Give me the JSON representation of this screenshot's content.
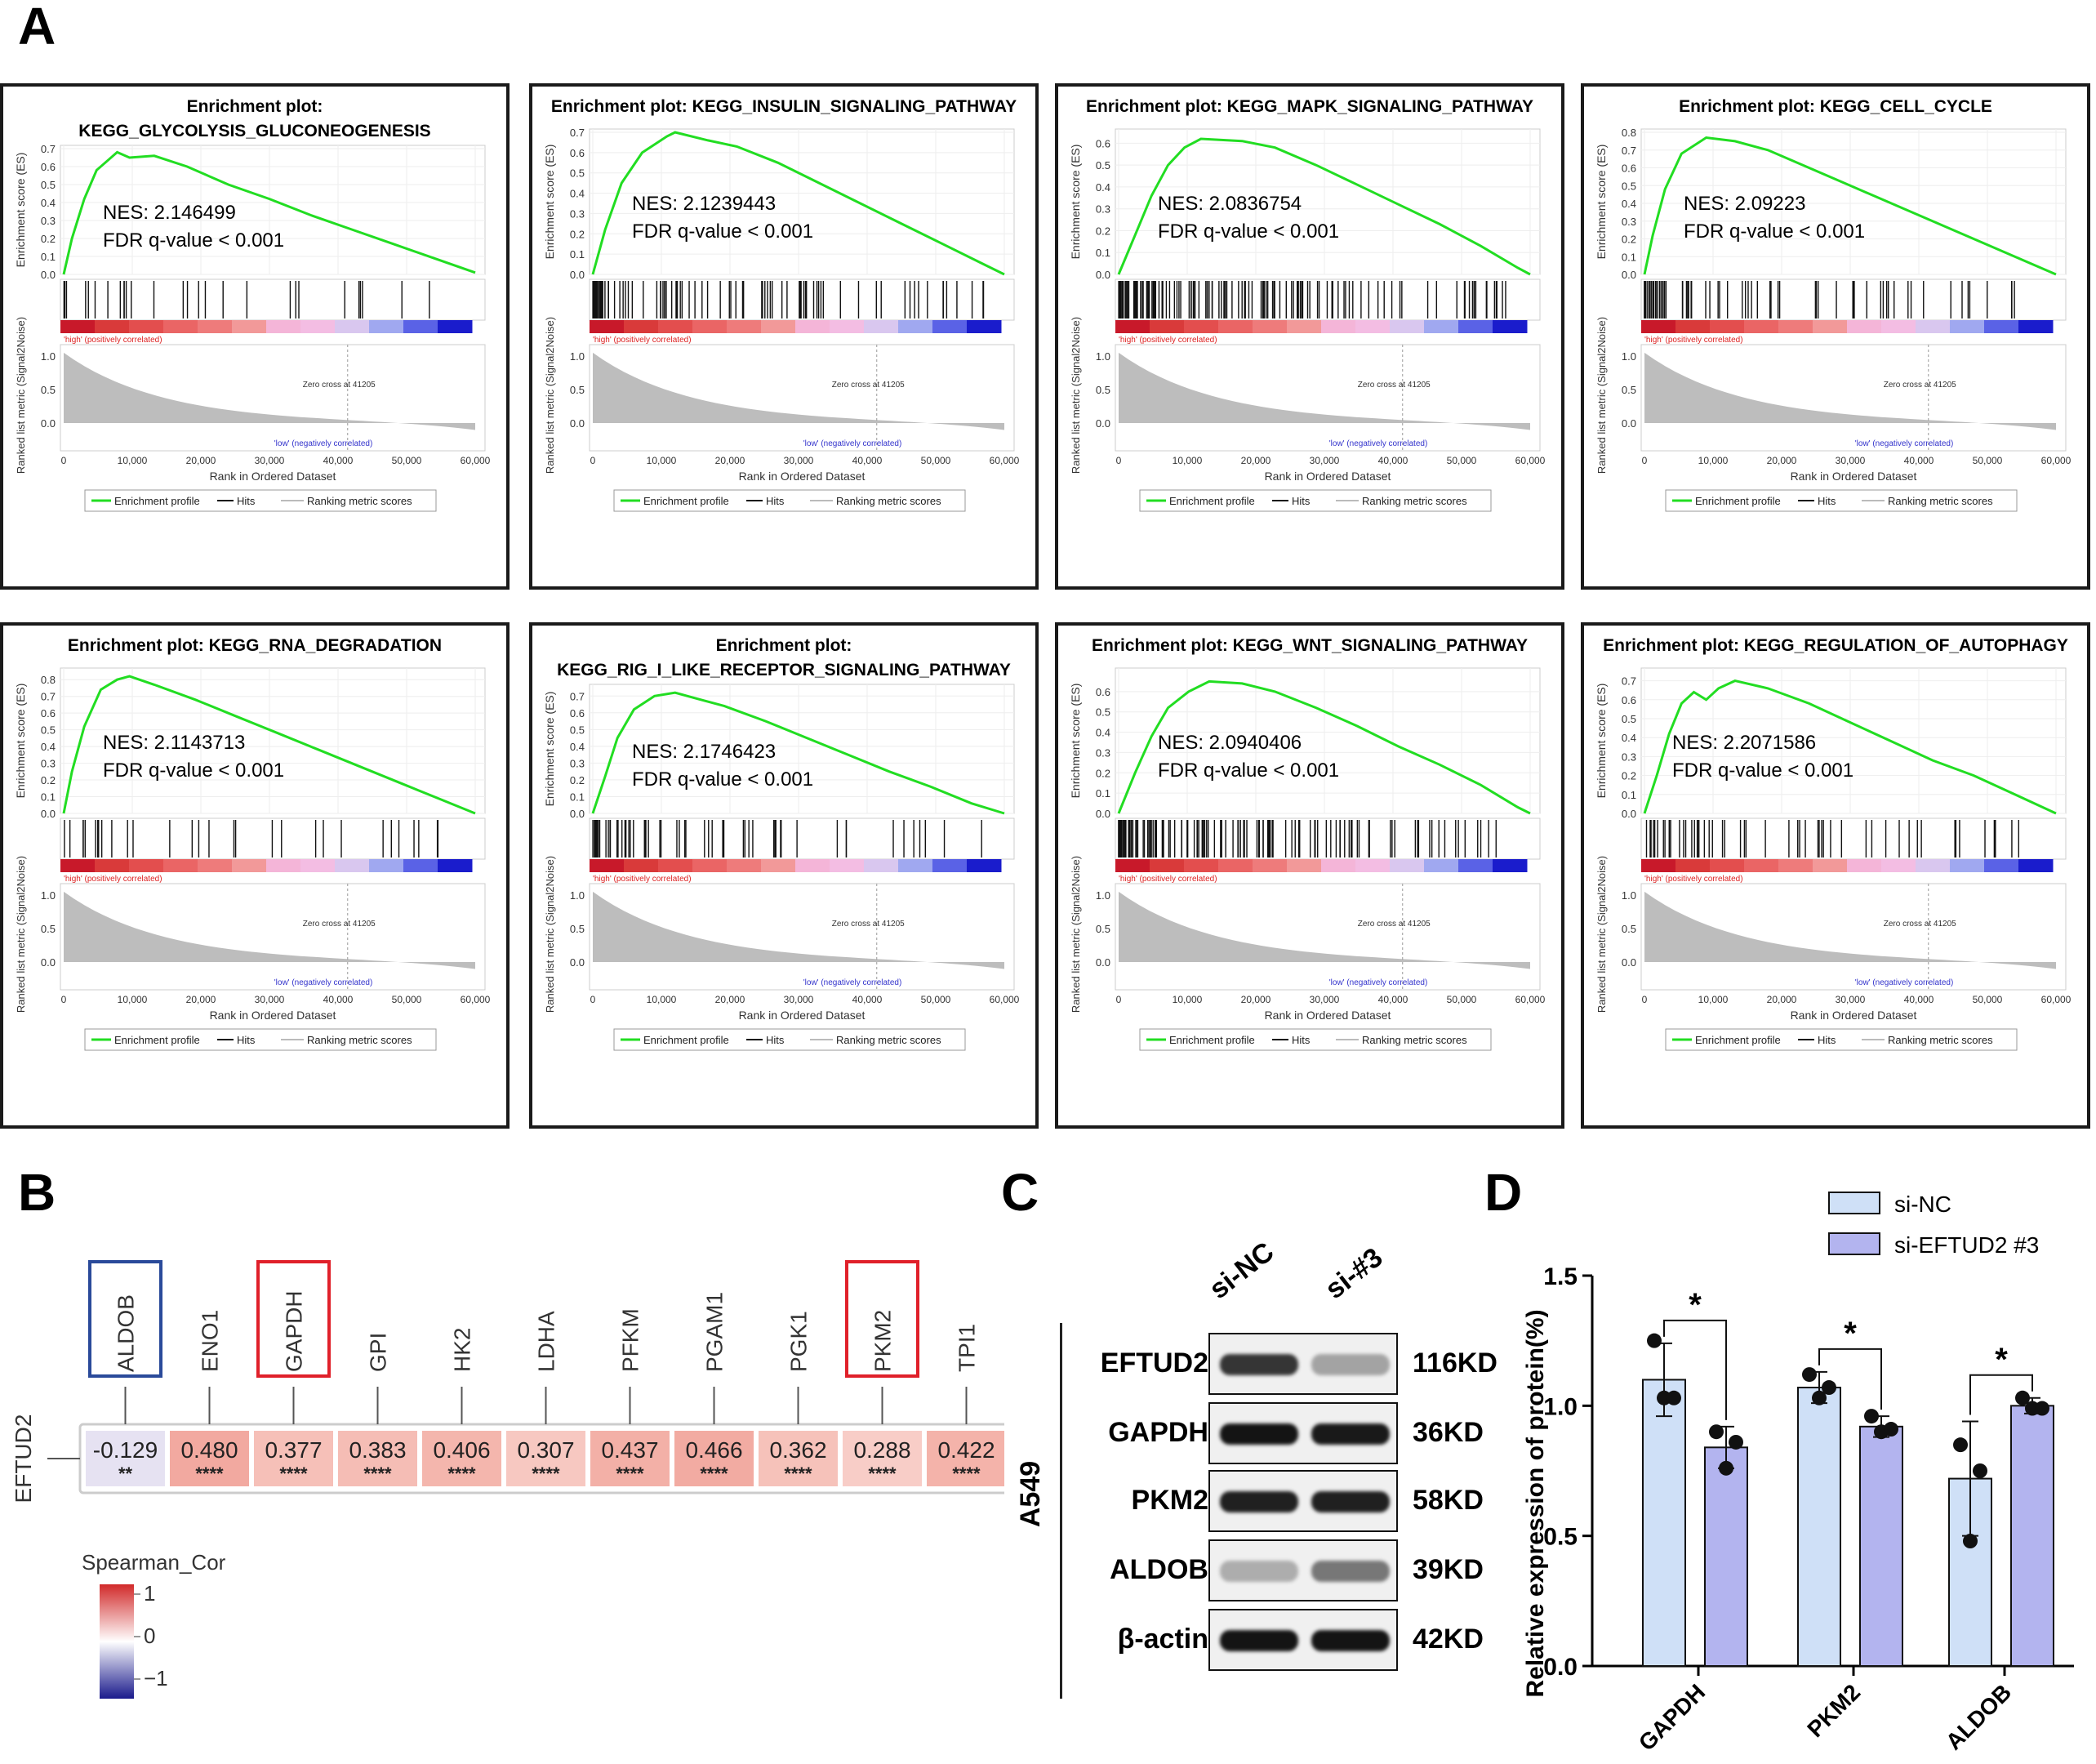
{
  "panels": {
    "A": "A",
    "B": "B",
    "C": "C",
    "D": "D"
  },
  "gsea": {
    "ylabel_es": "Enrichment score (ES)",
    "ylabel_metric": "Ranked list metric (Signal2Noise)",
    "xlabel": "Rank in Ordered Dataset",
    "x_ticks": [
      "0",
      "10,000",
      "20,000",
      "30,000",
      "40,000",
      "50,000",
      "60,000"
    ],
    "metric_ticks": [
      "1.0",
      "0.5",
      "0.0"
    ],
    "high_label": "'high' (positively correlated)",
    "low_label": "'low' (negatively correlated)",
    "zero_cross": "Zero cross at 41205",
    "legend": [
      "Enrichment profile",
      "Hits",
      "Ranking metric scores"
    ],
    "plots": [
      {
        "title1": "Enrichment plot:",
        "title2": "KEGG_GLYCOLYSIS_GLUCONEOGENESIS",
        "nes": "NES: 2.146499",
        "fdr": "FDR q-value < 0.001",
        "es_ticks": [
          "0.7",
          "0.6",
          "0.5",
          "0.4",
          "0.3",
          "0.2",
          "0.1",
          "0.0"
        ],
        "es_max": 0.7,
        "es_points": [
          [
            0,
            0
          ],
          [
            0.02,
            0.2
          ],
          [
            0.05,
            0.42
          ],
          [
            0.08,
            0.58
          ],
          [
            0.13,
            0.68
          ],
          [
            0.16,
            0.65
          ],
          [
            0.22,
            0.66
          ],
          [
            0.3,
            0.6
          ],
          [
            0.4,
            0.5
          ],
          [
            0.5,
            0.42
          ],
          [
            0.6,
            0.33
          ],
          [
            0.7,
            0.25
          ],
          [
            0.8,
            0.17
          ],
          [
            0.9,
            0.09
          ],
          [
            1,
            0.01
          ]
        ]
      },
      {
        "title1": "Enrichment plot: KEGG_INSULIN_SIGNALING_PATHWAY",
        "title2": "",
        "nes": "NES: 2.1239443",
        "fdr": "FDR q-value < 0.001",
        "es_ticks": [
          "0.7",
          "0.6",
          "0.5",
          "0.4",
          "0.3",
          "0.2",
          "0.1",
          "0.0"
        ],
        "es_max": 0.7,
        "es_points": [
          [
            0,
            0
          ],
          [
            0.03,
            0.22
          ],
          [
            0.07,
            0.45
          ],
          [
            0.12,
            0.6
          ],
          [
            0.18,
            0.68
          ],
          [
            0.2,
            0.7
          ],
          [
            0.28,
            0.66
          ],
          [
            0.35,
            0.63
          ],
          [
            0.45,
            0.55
          ],
          [
            0.55,
            0.45
          ],
          [
            0.65,
            0.35
          ],
          [
            0.75,
            0.25
          ],
          [
            0.85,
            0.15
          ],
          [
            0.95,
            0.05
          ],
          [
            1,
            0
          ]
        ]
      },
      {
        "title1": "Enrichment plot: KEGG_MAPK_SIGNALING_PATHWAY",
        "title2": "",
        "nes": "NES: 2.0836754",
        "fdr": "FDR q-value < 0.001",
        "es_ticks": [
          "0.6",
          "0.5",
          "0.4",
          "0.3",
          "0.2",
          "0.1",
          "0.0"
        ],
        "es_max": 0.65,
        "es_points": [
          [
            0,
            0
          ],
          [
            0.04,
            0.18
          ],
          [
            0.08,
            0.36
          ],
          [
            0.12,
            0.5
          ],
          [
            0.16,
            0.58
          ],
          [
            0.2,
            0.62
          ],
          [
            0.3,
            0.61
          ],
          [
            0.38,
            0.58
          ],
          [
            0.48,
            0.5
          ],
          [
            0.58,
            0.41
          ],
          [
            0.68,
            0.32
          ],
          [
            0.78,
            0.23
          ],
          [
            0.88,
            0.13
          ],
          [
            0.97,
            0.03
          ],
          [
            1,
            0
          ]
        ]
      },
      {
        "title1": "Enrichment plot: KEGG_CELL_CYCLE",
        "title2": "",
        "nes": "NES: 2.09223",
        "fdr": "FDR q-value < 0.001",
        "es_ticks": [
          "0.8",
          "0.7",
          "0.6",
          "0.5",
          "0.4",
          "0.3",
          "0.2",
          "0.1",
          "0.0"
        ],
        "es_max": 0.8,
        "es_points": [
          [
            0,
            0
          ],
          [
            0.02,
            0.22
          ],
          [
            0.05,
            0.48
          ],
          [
            0.09,
            0.68
          ],
          [
            0.15,
            0.77
          ],
          [
            0.22,
            0.75
          ],
          [
            0.3,
            0.7
          ],
          [
            0.4,
            0.6
          ],
          [
            0.5,
            0.5
          ],
          [
            0.6,
            0.4
          ],
          [
            0.7,
            0.3
          ],
          [
            0.8,
            0.2
          ],
          [
            0.9,
            0.1
          ],
          [
            1,
            0
          ]
        ]
      },
      {
        "title1": "Enrichment plot: KEGG_RNA_DEGRADATION",
        "title2": "",
        "nes": "NES: 2.1143713",
        "fdr": "FDR q-value < 0.001",
        "es_ticks": [
          "0.8",
          "0.7",
          "0.6",
          "0.5",
          "0.4",
          "0.3",
          "0.2",
          "0.1",
          "0.0"
        ],
        "es_max": 0.85,
        "es_points": [
          [
            0,
            0
          ],
          [
            0.02,
            0.25
          ],
          [
            0.05,
            0.52
          ],
          [
            0.09,
            0.74
          ],
          [
            0.13,
            0.8
          ],
          [
            0.16,
            0.82
          ],
          [
            0.22,
            0.77
          ],
          [
            0.32,
            0.68
          ],
          [
            0.42,
            0.58
          ],
          [
            0.52,
            0.48
          ],
          [
            0.62,
            0.38
          ],
          [
            0.72,
            0.28
          ],
          [
            0.82,
            0.18
          ],
          [
            0.92,
            0.08
          ],
          [
            1,
            0
          ]
        ]
      },
      {
        "title1": "Enrichment plot:",
        "title2": "KEGG_RIG_I_LIKE_RECEPTOR_SIGNALING_PATHWAY",
        "nes": "NES: 2.1746423",
        "fdr": "FDR q-value < 0.001",
        "es_ticks": [
          "0.7",
          "0.6",
          "0.5",
          "0.4",
          "0.3",
          "0.2",
          "0.1",
          "0.0"
        ],
        "es_max": 0.75,
        "es_points": [
          [
            0,
            0
          ],
          [
            0.03,
            0.22
          ],
          [
            0.06,
            0.45
          ],
          [
            0.1,
            0.62
          ],
          [
            0.15,
            0.7
          ],
          [
            0.2,
            0.72
          ],
          [
            0.26,
            0.68
          ],
          [
            0.32,
            0.64
          ],
          [
            0.42,
            0.55
          ],
          [
            0.52,
            0.45
          ],
          [
            0.62,
            0.35
          ],
          [
            0.72,
            0.25
          ],
          [
            0.82,
            0.16
          ],
          [
            0.92,
            0.06
          ],
          [
            1,
            0
          ]
        ]
      },
      {
        "title1": "Enrichment plot: KEGG_WNT_SIGNALING_PATHWAY",
        "title2": "",
        "nes": "NES: 2.0940406",
        "fdr": "FDR q-value < 0.001",
        "es_ticks": [
          "0.6",
          "0.5",
          "0.4",
          "0.3",
          "0.2",
          "0.1",
          "0.0"
        ],
        "es_max": 0.7,
        "es_points": [
          [
            0,
            0
          ],
          [
            0.04,
            0.2
          ],
          [
            0.08,
            0.38
          ],
          [
            0.12,
            0.52
          ],
          [
            0.17,
            0.6
          ],
          [
            0.22,
            0.65
          ],
          [
            0.3,
            0.64
          ],
          [
            0.38,
            0.6
          ],
          [
            0.48,
            0.52
          ],
          [
            0.58,
            0.43
          ],
          [
            0.68,
            0.33
          ],
          [
            0.78,
            0.24
          ],
          [
            0.88,
            0.14
          ],
          [
            0.97,
            0.03
          ],
          [
            1,
            0
          ]
        ]
      },
      {
        "title1": "Enrichment plot: KEGG_REGULATION_OF_AUTOPHAGY",
        "title2": "",
        "nes": "NES: 2.2071586",
        "fdr": "FDR q-value < 0.001",
        "es_ticks": [
          "0.7",
          "0.6",
          "0.5",
          "0.4",
          "0.3",
          "0.2",
          "0.1",
          "0.0"
        ],
        "es_max": 0.75,
        "es_points": [
          [
            0,
            0
          ],
          [
            0.03,
            0.2
          ],
          [
            0.06,
            0.42
          ],
          [
            0.09,
            0.58
          ],
          [
            0.12,
            0.64
          ],
          [
            0.15,
            0.6
          ],
          [
            0.18,
            0.66
          ],
          [
            0.22,
            0.7
          ],
          [
            0.3,
            0.66
          ],
          [
            0.4,
            0.58
          ],
          [
            0.5,
            0.48
          ],
          [
            0.6,
            0.38
          ],
          [
            0.7,
            0.28
          ],
          [
            0.8,
            0.2
          ],
          [
            0.9,
            0.1
          ],
          [
            1,
            0
          ]
        ]
      }
    ]
  },
  "heatmap": {
    "row_label": "EFTUD2",
    "genes": [
      "ALDOB",
      "ENO1",
      "GAPDH",
      "GPI",
      "HK2",
      "LDHA",
      "PFKM",
      "PGAM1",
      "PGK1",
      "PKM2",
      "TPI1"
    ],
    "values": [
      "-0.129",
      "0.480",
      "0.377",
      "0.383",
      "0.406",
      "0.307",
      "0.437",
      "0.466",
      "0.362",
      "0.288",
      "0.422"
    ],
    "stars": [
      "**",
      "****",
      "****",
      "****",
      "****",
      "****",
      "****",
      "****",
      "****",
      "****",
      "****"
    ],
    "colors": [
      "#e6e2f2",
      "#f2a9a0",
      "#f6c0b8",
      "#f5bdb5",
      "#f4b6ad",
      "#f7c8c1",
      "#f3b0a7",
      "#f2aba2",
      "#f6c2ba",
      "#f8cdc7",
      "#f4b3aa"
    ],
    "legend_title": "Spearman_Cor",
    "legend_ticks": [
      "1",
      "0",
      "−1"
    ]
  },
  "western": {
    "cell_line": "A549",
    "lanes": [
      "si-NC",
      "si-#3"
    ],
    "rows": [
      {
        "protein": "EFTUD2",
        "size": "116KD"
      },
      {
        "protein": "GAPDH",
        "size": "36KD"
      },
      {
        "protein": "PKM2",
        "size": "58KD"
      },
      {
        "protein": "ALDOB",
        "size": "39KD"
      },
      {
        "protein": "β-actin",
        "size": "42KD"
      }
    ]
  },
  "chart_data": {
    "type": "bar",
    "categories": [
      "GAPDH",
      "PKM2",
      "ALDOB"
    ],
    "series": [
      {
        "name": "si-NC",
        "values": [
          1.1,
          1.07,
          0.72
        ],
        "color": "#cfe0f7",
        "points": [
          [
            1.25,
            1.03,
            1.03
          ],
          [
            1.12,
            1.03,
            1.07
          ],
          [
            0.85,
            0.48,
            0.75
          ]
        ],
        "err": [
          0.14,
          0.06,
          0.22
        ]
      },
      {
        "name": "si-EFTUD2 #3",
        "values": [
          0.84,
          0.92,
          1.0
        ],
        "color": "#b3b4ef",
        "points": [
          [
            0.9,
            0.76,
            0.86
          ],
          [
            0.96,
            0.9,
            0.91
          ],
          [
            1.03,
            0.99,
            0.99
          ]
        ],
        "err": [
          0.08,
          0.04,
          0.03
        ]
      }
    ],
    "ylabel": "Relative expression of protein(%)",
    "ylim": [
      0,
      1.5
    ],
    "yticks": [
      "0.0",
      "0.5",
      "1.0",
      "1.5"
    ],
    "significance": [
      "*",
      "*",
      "*"
    ],
    "legend_position": "top-right"
  }
}
